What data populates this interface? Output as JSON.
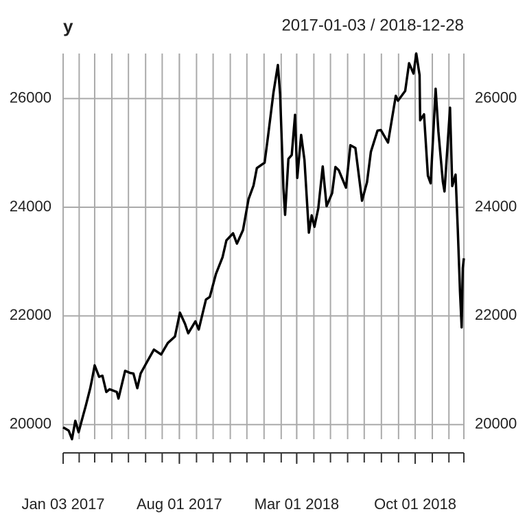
{
  "chart_data": {
    "type": "line",
    "title": "y",
    "subtitle": "2017-01-03 / 2018-12-28",
    "x": [
      "2017-01-03",
      "2017-01-13",
      "2017-01-19",
      "2017-01-25",
      "2017-01-31",
      "2017-02-06",
      "2017-02-13",
      "2017-02-21",
      "2017-02-24",
      "2017-03-01",
      "2017-03-09",
      "2017-03-15",
      "2017-03-22",
      "2017-03-28",
      "2017-04-10",
      "2017-04-13",
      "2017-04-25",
      "2017-05-04",
      "2017-05-10",
      "2017-05-17",
      "2017-05-23",
      "2017-06-05",
      "2017-06-16",
      "2017-06-29",
      "2017-07-11",
      "2017-07-24",
      "2017-08-02",
      "2017-08-11",
      "2017-08-17",
      "2017-08-30",
      "2017-09-05",
      "2017-09-18",
      "2017-09-25",
      "2017-10-06",
      "2017-10-18",
      "2017-10-25",
      "2017-11-06",
      "2017-11-13",
      "2017-11-24",
      "2017-12-04",
      "2017-12-13",
      "2017-12-19",
      "2018-01-02",
      "2018-01-08",
      "2018-01-18",
      "2018-01-26",
      "2018-01-30",
      "2018-02-05",
      "2018-02-08",
      "2018-02-14",
      "2018-02-20",
      "2018-02-26",
      "2018-03-02",
      "2018-03-09",
      "2018-03-15",
      "2018-03-23",
      "2018-03-28",
      "2018-04-02",
      "2018-04-09",
      "2018-04-17",
      "2018-04-24",
      "2018-05-04",
      "2018-05-10",
      "2018-05-16",
      "2018-05-29",
      "2018-06-06",
      "2018-06-15",
      "2018-06-27",
      "2018-07-06",
      "2018-07-13",
      "2018-07-25",
      "2018-07-31",
      "2018-08-13",
      "2018-08-27",
      "2018-08-31",
      "2018-09-13",
      "2018-09-20",
      "2018-09-28",
      "2018-10-03",
      "2018-10-09",
      "2018-10-10",
      "2018-10-17",
      "2018-10-24",
      "2018-10-29",
      "2018-11-07",
      "2018-11-12",
      "2018-11-20",
      "2018-11-23",
      "2018-12-03",
      "2018-12-07",
      "2018-12-13",
      "2018-12-17",
      "2018-12-21",
      "2018-12-24",
      "2018-12-26",
      "2018-12-28"
    ],
    "series": [
      {
        "name": "y",
        "color": "#000000",
        "values": [
          19950,
          19890,
          19732,
          20070,
          19860,
          20090,
          20350,
          20670,
          20820,
          21090,
          20880,
          20900,
          20600,
          20650,
          20600,
          20480,
          20990,
          20950,
          20940,
          20670,
          20940,
          21180,
          21380,
          21290,
          21500,
          21620,
          22060,
          21860,
          21680,
          21900,
          21750,
          22300,
          22350,
          22770,
          23080,
          23390,
          23520,
          23330,
          23580,
          24150,
          24400,
          24720,
          24820,
          25290,
          26110,
          26616,
          26080,
          24350,
          23860,
          24890,
          24960,
          25700,
          24540,
          25330,
          24870,
          23533,
          23850,
          23640,
          23980,
          24750,
          24020,
          24260,
          24740,
          24680,
          24360,
          25140,
          25090,
          24120,
          24460,
          25020,
          25410,
          25420,
          25190,
          26050,
          25960,
          26140,
          26650,
          26460,
          26828,
          26430,
          25600,
          25710,
          24580,
          24440,
          26180,
          25390,
          24470,
          24290,
          25830,
          24390,
          24600,
          23590,
          22450,
          21790,
          22880,
          23060
        ]
      }
    ],
    "xticks": [
      {
        "value": "2017-01-03",
        "label": "Jan 03 2017"
      },
      {
        "value": "2017-08-01",
        "label": "Aug 01 2017"
      },
      {
        "value": "2018-03-01",
        "label": "Mar 01 2018"
      },
      {
        "value": "2018-10-01",
        "label": "Oct 01 2018"
      }
    ],
    "xminor": [
      "2017-02-01",
      "2017-03-01",
      "2017-04-01",
      "2017-05-01",
      "2017-06-01",
      "2017-07-01",
      "2017-08-01",
      "2017-09-01",
      "2017-10-01",
      "2017-11-01",
      "2017-12-01",
      "2018-01-01",
      "2018-02-01",
      "2018-03-01",
      "2018-04-01",
      "2018-05-01",
      "2018-06-01",
      "2018-07-01",
      "2018-08-01",
      "2018-09-01",
      "2018-10-01",
      "2018-11-01",
      "2018-12-01",
      "2018-12-28"
    ],
    "xlim": [
      "2017-01-03",
      "2018-12-28"
    ],
    "ylim": [
      19732,
      26828
    ],
    "yticks": [
      20000,
      22000,
      24000,
      26000
    ],
    "grid": true
  }
}
